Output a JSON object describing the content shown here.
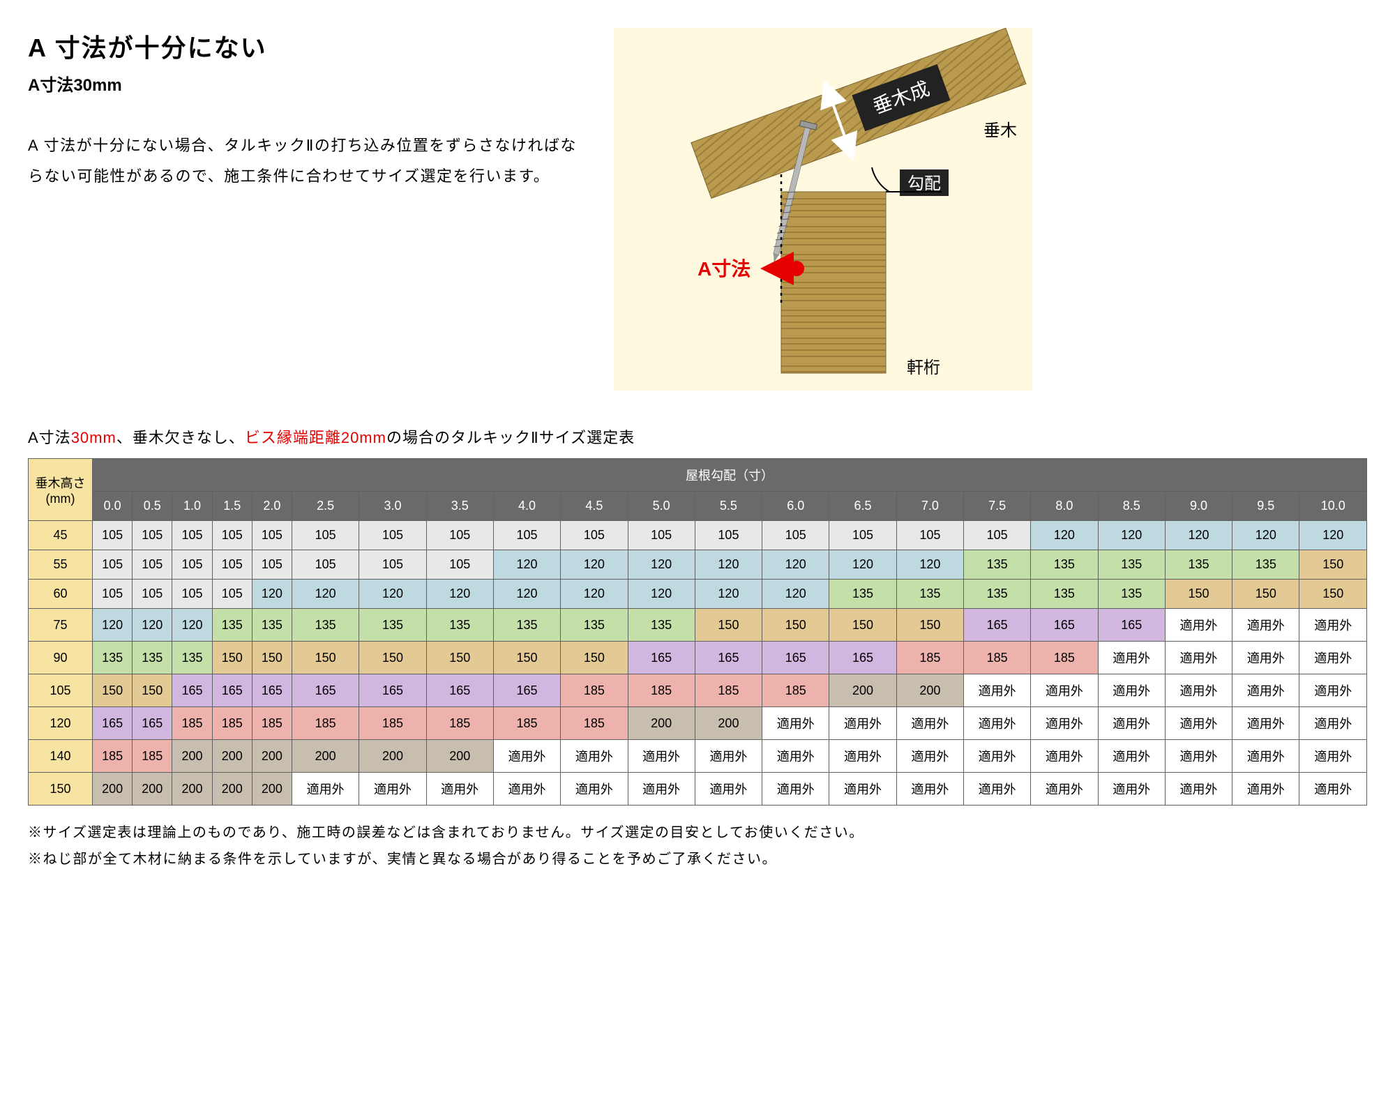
{
  "title": "A 寸法が十分にない",
  "subtitle": "A寸法30mm",
  "paragraph": "A 寸法が十分にない場合、タルキックⅡの打ち込み位置をずらさなければならない可能性があるので、施工条件に合わせてサイズ選定を行います。",
  "diagram": {
    "bg_color": "#fff9e0",
    "labels": {
      "rafter_height": "垂木成",
      "rafter": "垂木",
      "slope": "勾配",
      "a_dimension": "A寸法",
      "beam": "軒桁"
    },
    "a_label_color": "#e60000"
  },
  "table_caption_parts": {
    "p1": "A寸法",
    "p2": "30mm",
    "p3": "、垂木欠きなし、",
    "p4": "ビス縁端距離20mm",
    "p5": "の場合のタルキックⅡサイズ選定表"
  },
  "table": {
    "corner_label_line1": "垂木高さ",
    "corner_label_line2": "(mm)",
    "span_header": "屋根勾配（寸）",
    "slope_cols": [
      "0.0",
      "0.5",
      "1.0",
      "1.5",
      "2.0",
      "2.5",
      "3.0",
      "3.5",
      "4.0",
      "4.5",
      "5.0",
      "5.5",
      "6.0",
      "6.5",
      "7.0",
      "7.5",
      "8.0",
      "8.5",
      "9.0",
      "9.5",
      "10.0"
    ],
    "row_heads": [
      "45",
      "55",
      "60",
      "75",
      "90",
      "105",
      "120",
      "140",
      "150"
    ],
    "rows": [
      [
        "105",
        "105",
        "105",
        "105",
        "105",
        "105",
        "105",
        "105",
        "105",
        "105",
        "105",
        "105",
        "105",
        "105",
        "105",
        "105",
        "120",
        "120",
        "120",
        "120",
        "120"
      ],
      [
        "105",
        "105",
        "105",
        "105",
        "105",
        "105",
        "105",
        "105",
        "120",
        "120",
        "120",
        "120",
        "120",
        "120",
        "120",
        "135",
        "135",
        "135",
        "135",
        "135",
        "150"
      ],
      [
        "105",
        "105",
        "105",
        "105",
        "120",
        "120",
        "120",
        "120",
        "120",
        "120",
        "120",
        "120",
        "120",
        "135",
        "135",
        "135",
        "135",
        "135",
        "150",
        "150",
        "150"
      ],
      [
        "120",
        "120",
        "120",
        "135",
        "135",
        "135",
        "135",
        "135",
        "135",
        "135",
        "135",
        "150",
        "150",
        "150",
        "150",
        "165",
        "165",
        "165",
        "適用外",
        "適用外",
        "適用外"
      ],
      [
        "135",
        "135",
        "135",
        "150",
        "150",
        "150",
        "150",
        "150",
        "150",
        "150",
        "165",
        "165",
        "165",
        "165",
        "185",
        "185",
        "185",
        "適用外",
        "適用外",
        "適用外",
        "適用外"
      ],
      [
        "150",
        "150",
        "165",
        "165",
        "165",
        "165",
        "165",
        "165",
        "165",
        "185",
        "185",
        "185",
        "185",
        "200",
        "200",
        "適用外",
        "適用外",
        "適用外",
        "適用外",
        "適用外",
        "適用外"
      ],
      [
        "165",
        "165",
        "185",
        "185",
        "185",
        "185",
        "185",
        "185",
        "185",
        "185",
        "200",
        "200",
        "適用外",
        "適用外",
        "適用外",
        "適用外",
        "適用外",
        "適用外",
        "適用外",
        "適用外",
        "適用外"
      ],
      [
        "185",
        "185",
        "200",
        "200",
        "200",
        "200",
        "200",
        "200",
        "適用外",
        "適用外",
        "適用外",
        "適用外",
        "適用外",
        "適用外",
        "適用外",
        "適用外",
        "適用外",
        "適用外",
        "適用外",
        "適用外",
        "適用外"
      ],
      [
        "200",
        "200",
        "200",
        "200",
        "200",
        "適用外",
        "適用外",
        "適用外",
        "適用外",
        "適用外",
        "適用外",
        "適用外",
        "適用外",
        "適用外",
        "適用外",
        "適用外",
        "適用外",
        "適用外",
        "適用外",
        "適用外",
        "適用外"
      ]
    ],
    "cell_colors": {
      "105": "#e8e8e8",
      "120": "#bfd9e0",
      "135": "#c5dfa8",
      "150": "#e3c994",
      "165": "#d1b6e0",
      "185": "#eeb2ad",
      "200": "#c7beb0",
      "適用外": "#ffffff"
    }
  },
  "footnotes": [
    "※サイズ選定表は理論上のものであり、施工時の誤差などは含まれておりません。サイズ選定の目安としてお使いください。",
    "※ねじ部が全て木材に納まる条件を示していますが、実情と異なる場合があり得ることを予めご了承ください。"
  ]
}
